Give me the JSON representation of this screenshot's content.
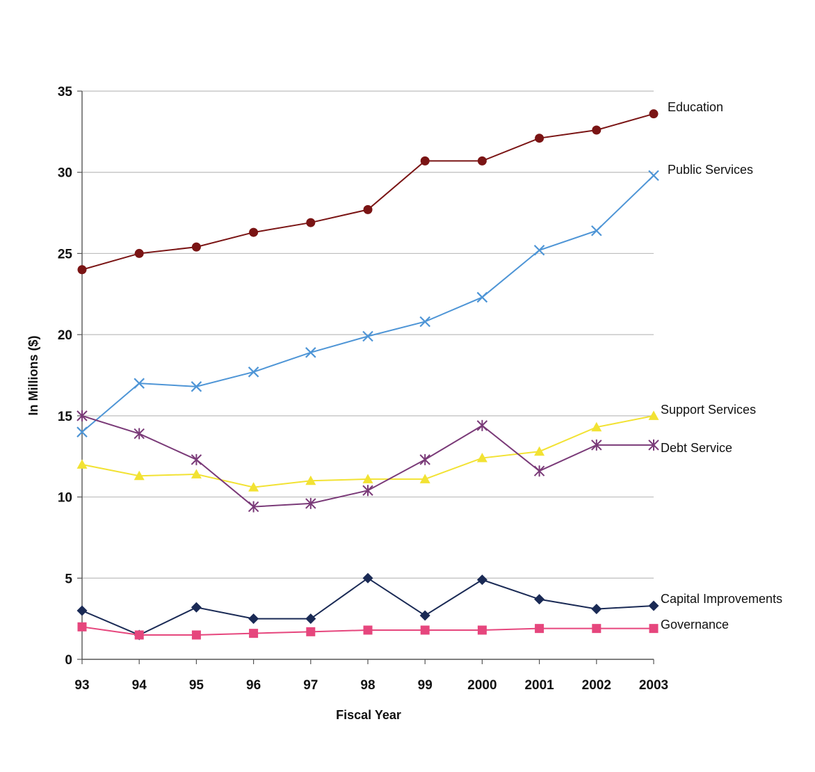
{
  "chart_data": {
    "type": "line",
    "title": "",
    "xlabel": "Fiscal Year",
    "ylabel": "In Millions ($)",
    "categories": [
      "93",
      "94",
      "95",
      "96",
      "97",
      "98",
      "99",
      "2000",
      "2001",
      "2002",
      "2003"
    ],
    "ylim": [
      0,
      35
    ],
    "yticks": [
      0,
      5,
      10,
      15,
      20,
      25,
      30,
      35
    ],
    "grid": true,
    "legend": "inline-right",
    "series": [
      {
        "name": "Education",
        "color": "#7a1414",
        "marker": "circle",
        "values": [
          24.0,
          25.0,
          25.4,
          26.3,
          26.9,
          27.7,
          30.7,
          30.7,
          32.1,
          32.6,
          33.6
        ]
      },
      {
        "name": "Public Services",
        "color": "#4e95d6",
        "marker": "x",
        "values": [
          14.0,
          17.0,
          16.8,
          17.7,
          18.9,
          19.9,
          20.8,
          22.3,
          25.2,
          26.4,
          29.8
        ]
      },
      {
        "name": "Support Services",
        "color": "#f2e233",
        "marker": "triangle",
        "values": [
          12.0,
          11.3,
          11.4,
          10.6,
          11.0,
          11.1,
          11.1,
          12.4,
          12.8,
          14.3,
          15.0
        ]
      },
      {
        "name": "Debt Service",
        "color": "#7a3a78",
        "marker": "asterisk",
        "values": [
          15.0,
          13.9,
          12.3,
          9.4,
          9.6,
          10.4,
          12.3,
          14.4,
          11.6,
          13.2,
          13.2
        ]
      },
      {
        "name": "Capital Improvements",
        "color": "#1a2a55",
        "marker": "diamond",
        "values": [
          3.0,
          1.5,
          3.2,
          2.5,
          2.5,
          5.0,
          2.7,
          4.9,
          3.7,
          3.1,
          3.3
        ]
      },
      {
        "name": "Governance",
        "color": "#e6467d",
        "marker": "square",
        "values": [
          2.0,
          1.5,
          1.5,
          1.6,
          1.7,
          1.8,
          1.8,
          1.8,
          1.9,
          1.9,
          1.9
        ]
      }
    ]
  }
}
